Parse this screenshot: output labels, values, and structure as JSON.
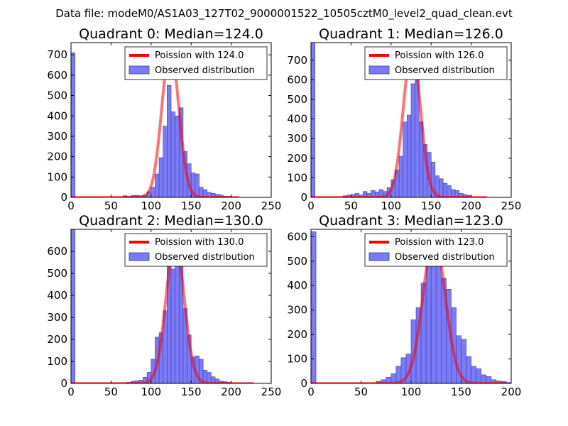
{
  "figure": {
    "title": "Data file: modeM0/AS1A03_127T02_9000001522_10505cztM0_level2_quad_clean.evt"
  },
  "chart_data": [
    {
      "type": "bar",
      "title": "Quadrant 0: Median=124.0",
      "median": 124.0,
      "xlim": [
        0,
        250
      ],
      "ylim": [
        0,
        760
      ],
      "xticks": [
        0,
        50,
        100,
        150,
        200,
        250
      ],
      "yticks": [
        0,
        100,
        200,
        300,
        400,
        500,
        600,
        700
      ],
      "bin_width": 5,
      "bins": [
        [
          0,
          710
        ],
        [
          65,
          8
        ],
        [
          70,
          4
        ],
        [
          75,
          10
        ],
        [
          80,
          10
        ],
        [
          85,
          8
        ],
        [
          90,
          12
        ],
        [
          95,
          28
        ],
        [
          100,
          50
        ],
        [
          105,
          115
        ],
        [
          110,
          195
        ],
        [
          115,
          350
        ],
        [
          120,
          550
        ],
        [
          125,
          420
        ],
        [
          130,
          400
        ],
        [
          135,
          440
        ],
        [
          140,
          225
        ],
        [
          145,
          165
        ],
        [
          150,
          120
        ],
        [
          155,
          115
        ],
        [
          160,
          50
        ],
        [
          165,
          38
        ],
        [
          170,
          25
        ],
        [
          175,
          20
        ],
        [
          180,
          15
        ],
        [
          185,
          12
        ],
        [
          190,
          5
        ],
        [
          195,
          4
        ]
      ],
      "poisson": {
        "label": "Poission with 124.0",
        "lambda": 124.0,
        "peak": 730,
        "sigma": 10.6,
        "x_range": [
          0,
          210
        ]
      },
      "legend": {
        "poisson": "Poission with 124.0",
        "observed": "Observed distribution",
        "location": "upper right"
      }
    },
    {
      "type": "bar",
      "title": "Quadrant 1: Median=126.0",
      "median": 126.0,
      "xlim": [
        0,
        250
      ],
      "ylim": [
        0,
        790
      ],
      "xticks": [
        0,
        50,
        100,
        150,
        200,
        250
      ],
      "yticks": [
        0,
        100,
        200,
        300,
        400,
        500,
        600,
        700
      ],
      "bin_width": 5,
      "bins": [
        [
          0,
          790
        ],
        [
          40,
          8
        ],
        [
          45,
          12
        ],
        [
          50,
          15
        ],
        [
          55,
          20
        ],
        [
          60,
          12
        ],
        [
          65,
          30
        ],
        [
          70,
          20
        ],
        [
          75,
          35
        ],
        [
          80,
          28
        ],
        [
          85,
          40
        ],
        [
          90,
          30
        ],
        [
          95,
          50
        ],
        [
          100,
          90
        ],
        [
          105,
          140
        ],
        [
          110,
          210
        ],
        [
          115,
          385
        ],
        [
          120,
          420
        ],
        [
          125,
          580
        ],
        [
          130,
          610
        ],
        [
          135,
          385
        ],
        [
          140,
          270
        ],
        [
          145,
          230
        ],
        [
          150,
          180
        ],
        [
          155,
          110
        ],
        [
          160,
          95
        ],
        [
          165,
          72
        ],
        [
          170,
          60
        ],
        [
          175,
          40
        ],
        [
          180,
          35
        ],
        [
          185,
          20
        ],
        [
          190,
          15
        ],
        [
          195,
          10
        ]
      ],
      "poisson": {
        "label": "Poission with 126.0",
        "lambda": 126.0,
        "peak": 755,
        "sigma": 10.7,
        "x_range": [
          0,
          220
        ]
      },
      "legend": {
        "poisson": "Poission with 126.0",
        "observed": "Observed distribution",
        "location": "upper right"
      }
    },
    {
      "type": "bar",
      "title": "Quadrant 2: Median=130.0",
      "median": 130.0,
      "xlim": [
        0,
        250
      ],
      "ylim": [
        0,
        700
      ],
      "xticks": [
        0,
        50,
        100,
        150,
        200,
        250
      ],
      "yticks": [
        0,
        100,
        200,
        300,
        400,
        500,
        600
      ],
      "bin_width": 5,
      "bins": [
        [
          0,
          700
        ],
        [
          70,
          5
        ],
        [
          75,
          10
        ],
        [
          80,
          12
        ],
        [
          85,
          15
        ],
        [
          90,
          28
        ],
        [
          95,
          50
        ],
        [
          100,
          110
        ],
        [
          105,
          210
        ],
        [
          110,
          230
        ],
        [
          115,
          330
        ],
        [
          120,
          580
        ],
        [
          125,
          520
        ],
        [
          130,
          580
        ],
        [
          135,
          600
        ],
        [
          140,
          340
        ],
        [
          145,
          220
        ],
        [
          150,
          120
        ],
        [
          155,
          125
        ],
        [
          160,
          110
        ],
        [
          165,
          60
        ],
        [
          170,
          50
        ],
        [
          175,
          30
        ],
        [
          180,
          20
        ],
        [
          185,
          10
        ],
        [
          190,
          8
        ],
        [
          195,
          5
        ]
      ],
      "poisson": {
        "label": "Poission with 130.0",
        "lambda": 130.0,
        "peak": 640,
        "sigma": 11.4,
        "x_range": [
          0,
          228
        ]
      },
      "legend": {
        "poisson": "Poission with 130.0",
        "observed": "Observed distribution",
        "location": "upper right"
      }
    },
    {
      "type": "bar",
      "title": "Quadrant 3: Median=123.0",
      "median": 123.0,
      "xlim": [
        0,
        200
      ],
      "ylim": [
        0,
        630
      ],
      "xticks": [
        0,
        50,
        100,
        150,
        200
      ],
      "yticks": [
        0,
        100,
        200,
        300,
        400,
        500,
        600
      ],
      "bin_width": 5,
      "bins": [
        [
          0,
          620
        ],
        [
          65,
          8
        ],
        [
          70,
          15
        ],
        [
          75,
          25
        ],
        [
          80,
          40
        ],
        [
          85,
          70
        ],
        [
          90,
          105
        ],
        [
          95,
          120
        ],
        [
          100,
          260
        ],
        [
          105,
          310
        ],
        [
          110,
          410
        ],
        [
          115,
          510
        ],
        [
          120,
          520
        ],
        [
          125,
          600
        ],
        [
          130,
          430
        ],
        [
          135,
          385
        ],
        [
          140,
          310
        ],
        [
          145,
          195
        ],
        [
          150,
          180
        ],
        [
          155,
          110
        ],
        [
          160,
          70
        ],
        [
          165,
          60
        ],
        [
          170,
          35
        ],
        [
          175,
          28
        ],
        [
          180,
          15
        ],
        [
          185,
          10
        ],
        [
          190,
          8
        ],
        [
          195,
          4
        ]
      ],
      "poisson": {
        "label": "Poission with 123.0",
        "lambda": 123.0,
        "peak": 595,
        "sigma": 11.1,
        "x_range": [
          0,
          195
        ]
      },
      "legend": {
        "poisson": "Poission with 123.0",
        "observed": "Observed distribution",
        "location": "upper right"
      }
    }
  ],
  "colors": {
    "bar": "#7b7bf7",
    "bar_edge": "#3a3aa8",
    "poisson_line": "#ff0000"
  }
}
